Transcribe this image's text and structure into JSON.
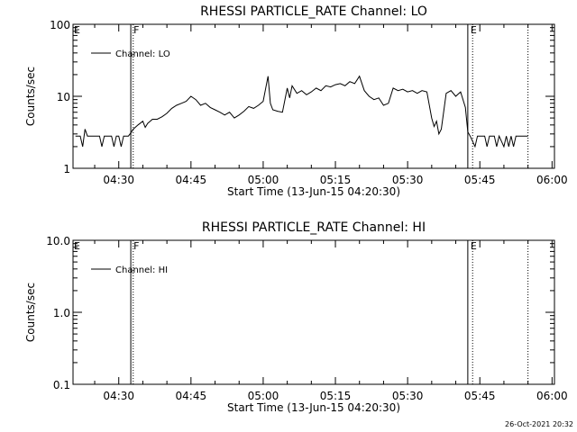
{
  "timestamp": "26-Oct-2021 20:32",
  "chart_data": [
    {
      "type": "line",
      "title": "RHESSI PARTICLE_RATE Channel: LO",
      "xlabel": "Start Time (13-Jun-15 04:20:30)",
      "ylabel": "Counts/sec",
      "y_scale": "log",
      "ylim": [
        1,
        100
      ],
      "y_ticks": [
        {
          "v": 1,
          "label": "1"
        },
        {
          "v": 10,
          "label": "10"
        },
        {
          "v": 100,
          "label": "100"
        }
      ],
      "xlim": [
        "04:20:30",
        "06:00:30"
      ],
      "x_ticks": [
        "04:30",
        "04:45",
        "05:00",
        "05:15",
        "05:30",
        "05:45",
        "06:00"
      ],
      "legend": {
        "entries": [
          "Channel: LO"
        ],
        "position": "top-left"
      },
      "markers": [
        {
          "time": "04:32:30",
          "style": "solid",
          "label": "F"
        },
        {
          "time": "04:33:00",
          "style": "dotted",
          "label": ""
        },
        {
          "time": "05:42:30",
          "style": "solid",
          "label": "E"
        },
        {
          "time": "05:43:30",
          "style": "dotted",
          "label": ""
        },
        {
          "time": "05:55:00",
          "style": "dotted",
          "label": ""
        }
      ],
      "edge_label": "E",
      "series": [
        {
          "name": "Channel: LO",
          "points": [
            [
              "04:21:00",
              2.8
            ],
            [
              "04:22:00",
              2.8
            ],
            [
              "04:22:30",
              2.0
            ],
            [
              "04:23:00",
              3.5
            ],
            [
              "04:23:30",
              2.8
            ],
            [
              "04:24:00",
              2.8
            ],
            [
              "04:26:00",
              2.8
            ],
            [
              "04:26:30",
              2.0
            ],
            [
              "04:27:00",
              2.8
            ],
            [
              "04:28:30",
              2.8
            ],
            [
              "04:29:00",
              2.0
            ],
            [
              "04:29:30",
              2.8
            ],
            [
              "04:30:00",
              2.8
            ],
            [
              "04:30:30",
              2.0
            ],
            [
              "04:31:00",
              2.8
            ],
            [
              "04:32:00",
              2.8
            ],
            [
              "04:32:30",
              3.1
            ],
            [
              "04:33:00",
              3.5
            ],
            [
              "04:34:00",
              4.0
            ],
            [
              "04:35:00",
              4.5
            ],
            [
              "04:35:30",
              3.7
            ],
            [
              "04:36:00",
              4.2
            ],
            [
              "04:37:00",
              4.8
            ],
            [
              "04:37:30",
              4.8
            ],
            [
              "04:38:00",
              4.8
            ],
            [
              "04:39:00",
              5.2
            ],
            [
              "04:40:00",
              5.8
            ],
            [
              "04:41:00",
              6.8
            ],
            [
              "04:42:00",
              7.5
            ],
            [
              "04:43:00",
              8.0
            ],
            [
              "04:44:00",
              8.5
            ],
            [
              "04:45:00",
              10.0
            ],
            [
              "04:46:00",
              9.0
            ],
            [
              "04:47:00",
              7.5
            ],
            [
              "04:48:00",
              8.0
            ],
            [
              "04:49:00",
              7.0
            ],
            [
              "04:50:00",
              6.5
            ],
            [
              "04:51:00",
              6.0
            ],
            [
              "04:52:00",
              5.5
            ],
            [
              "04:53:00",
              6.0
            ],
            [
              "04:54:00",
              5.0
            ],
            [
              "04:55:00",
              5.5
            ],
            [
              "04:56:00",
              6.2
            ],
            [
              "04:57:00",
              7.2
            ],
            [
              "04:58:00",
              6.8
            ],
            [
              "04:59:00",
              7.5
            ],
            [
              "05:00:00",
              8.5
            ],
            [
              "05:01:00",
              19.0
            ],
            [
              "05:01:30",
              8.0
            ],
            [
              "05:02:00",
              6.5
            ],
            [
              "05:03:00",
              6.2
            ],
            [
              "05:04:00",
              6.0
            ],
            [
              "05:05:00",
              13.0
            ],
            [
              "05:05:30",
              9.5
            ],
            [
              "05:06:00",
              14.0
            ],
            [
              "05:07:00",
              11.0
            ],
            [
              "05:08:00",
              12.0
            ],
            [
              "05:09:00",
              10.5
            ],
            [
              "05:10:00",
              11.5
            ],
            [
              "05:11:00",
              13.0
            ],
            [
              "05:12:00",
              12.0
            ],
            [
              "05:13:00",
              14.0
            ],
            [
              "05:14:00",
              13.5
            ],
            [
              "05:15:00",
              14.5
            ],
            [
              "05:16:00",
              15.0
            ],
            [
              "05:17:00",
              14.0
            ],
            [
              "05:18:00",
              16.0
            ],
            [
              "05:19:00",
              15.0
            ],
            [
              "05:20:00",
              19.0
            ],
            [
              "05:21:00",
              12.0
            ],
            [
              "05:22:00",
              10.0
            ],
            [
              "05:23:00",
              9.0
            ],
            [
              "05:24:00",
              9.5
            ],
            [
              "05:25:00",
              7.5
            ],
            [
              "05:26:00",
              8.0
            ],
            [
              "05:27:00",
              13.0
            ],
            [
              "05:28:00",
              12.0
            ],
            [
              "05:29:00",
              12.5
            ],
            [
              "05:30:00",
              11.5
            ],
            [
              "05:31:00",
              12.0
            ],
            [
              "05:32:00",
              11.0
            ],
            [
              "05:33:00",
              12.0
            ],
            [
              "05:34:00",
              11.5
            ],
            [
              "05:35:00",
              5.0
            ],
            [
              "05:35:30",
              3.8
            ],
            [
              "05:36:00",
              4.5
            ],
            [
              "05:36:30",
              3.0
            ],
            [
              "05:37:00",
              3.5
            ],
            [
              "05:38:00",
              11.0
            ],
            [
              "05:39:00",
              12.0
            ],
            [
              "05:40:00",
              10.0
            ],
            [
              "05:41:00",
              11.5
            ],
            [
              "05:42:00",
              7.0
            ],
            [
              "05:42:30",
              3.2
            ],
            [
              "05:43:00",
              2.8
            ],
            [
              "05:44:00",
              2.0
            ],
            [
              "05:44:30",
              2.8
            ],
            [
              "05:46:00",
              2.8
            ],
            [
              "05:46:30",
              2.0
            ],
            [
              "05:47:00",
              2.8
            ],
            [
              "05:48:00",
              2.8
            ],
            [
              "05:48:30",
              2.0
            ],
            [
              "05:49:00",
              2.8
            ],
            [
              "05:50:00",
              2.0
            ],
            [
              "05:50:30",
              2.8
            ],
            [
              "05:51:00",
              2.0
            ],
            [
              "05:51:30",
              2.8
            ],
            [
              "05:52:00",
              2.0
            ],
            [
              "05:52:30",
              2.8
            ],
            [
              "05:55:00",
              2.8
            ]
          ]
        }
      ]
    },
    {
      "type": "line",
      "title": "RHESSI PARTICLE_RATE Channel: HI",
      "xlabel": "Start Time (13-Jun-15 04:20:30)",
      "ylabel": "Counts/sec",
      "y_scale": "log",
      "ylim": [
        0.1,
        10
      ],
      "y_ticks": [
        {
          "v": 0.1,
          "label": "0.1"
        },
        {
          "v": 1,
          "label": "1.0"
        },
        {
          "v": 10,
          "label": "10.0"
        }
      ],
      "xlim": [
        "04:20:30",
        "06:00:30"
      ],
      "x_ticks": [
        "04:30",
        "04:45",
        "05:00",
        "05:15",
        "05:30",
        "05:45",
        "06:00"
      ],
      "legend": {
        "entries": [
          "Channel: HI"
        ],
        "position": "top-left"
      },
      "markers": [
        {
          "time": "04:32:30",
          "style": "solid",
          "label": "F"
        },
        {
          "time": "04:33:00",
          "style": "dotted",
          "label": ""
        },
        {
          "time": "05:42:30",
          "style": "solid",
          "label": "E"
        },
        {
          "time": "05:43:30",
          "style": "dotted",
          "label": ""
        },
        {
          "time": "05:55:00",
          "style": "dotted",
          "label": ""
        }
      ],
      "edge_label": "E",
      "series": [
        {
          "name": "Channel: HI",
          "points": []
        }
      ]
    }
  ]
}
